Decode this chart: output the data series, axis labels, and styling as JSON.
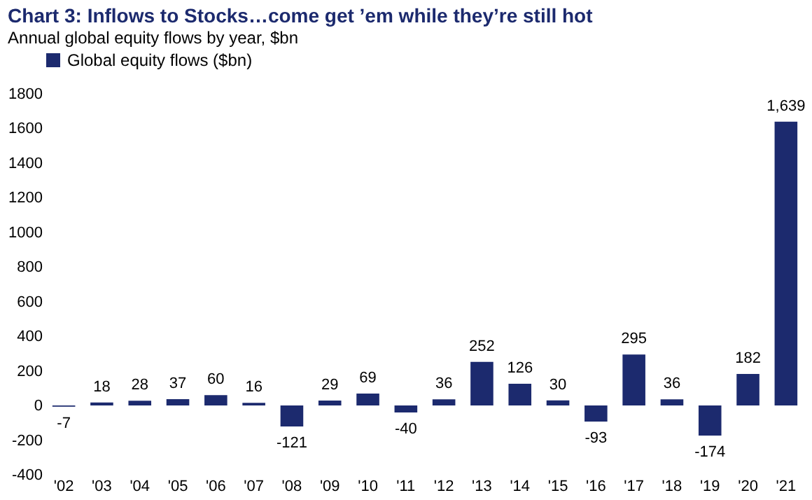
{
  "chart_data": {
    "type": "bar",
    "title": "Chart 3: Inflows to Stocks…come get ’em while they’re still hot",
    "subtitle": "Annual global equity flows by year, $bn",
    "categories": [
      "'02",
      "'03",
      "'04",
      "'05",
      "'06",
      "'07",
      "'08",
      "'09",
      "'10",
      "'11",
      "'12",
      "'13",
      "'14",
      "'15",
      "'16",
      "'17",
      "'18",
      "'19",
      "'20",
      "'21"
    ],
    "series": [
      {
        "name": "Global equity flows ($bn)",
        "color": "#1c2a6e",
        "values": [
          -7,
          18,
          28,
          37,
          60,
          16,
          -121,
          29,
          69,
          -40,
          36,
          252,
          126,
          30,
          -93,
          295,
          36,
          -174,
          182,
          1639
        ]
      }
    ],
    "value_labels": [
      "-7",
      "18",
      "28",
      "37",
      "60",
      "16",
      "-121",
      "29",
      "69",
      "-40",
      "36",
      "252",
      "126",
      "30",
      "-93",
      "295",
      "36",
      "-174",
      "182",
      "1,639"
    ],
    "ylim": [
      -400,
      1800
    ],
    "yticks": [
      -400,
      -200,
      0,
      200,
      400,
      600,
      800,
      1000,
      1200,
      1400,
      1600,
      1800
    ],
    "grid": false,
    "legend": "top"
  }
}
